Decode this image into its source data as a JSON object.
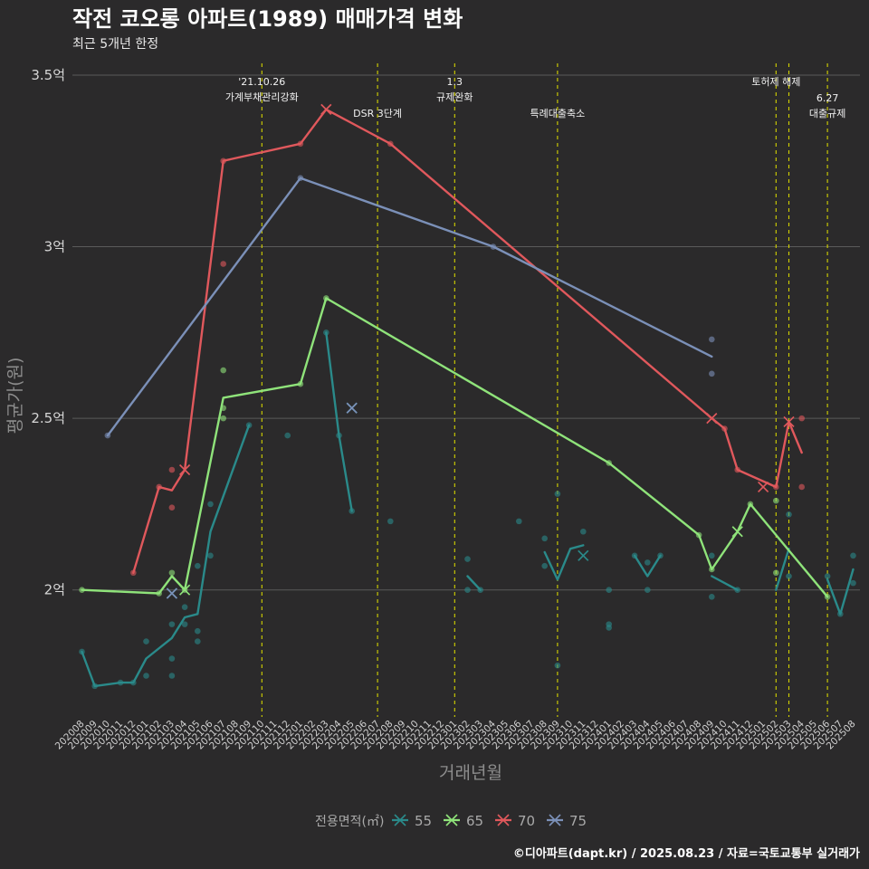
{
  "colors": {
    "background": "#2b2a2b",
    "series_55": "#2a8a8a",
    "series_65": "#8fe37a",
    "series_70": "#e0585c",
    "series_75": "#7b90b8",
    "vline": "#d4d400"
  },
  "chart_data": {
    "type": "line",
    "title": "작전 코오롱 아파트(1989) 매매가격 변화",
    "subtitle": "최근 5개년 한정",
    "xlabel": "거래년월",
    "ylabel": "평균가(원)",
    "ylim": [
      1.63,
      3.55
    ],
    "yticks": [
      {
        "value": 2.0,
        "label": "2억"
      },
      {
        "value": 2.5,
        "label": "2.5억"
      },
      {
        "value": 3.0,
        "label": "3억"
      },
      {
        "value": 3.5,
        "label": "3.5억"
      }
    ],
    "categories": [
      "202008",
      "202009",
      "202010",
      "202011",
      "202012",
      "202101",
      "202102",
      "202103",
      "202104",
      "202105",
      "202106",
      "202107",
      "202108",
      "202109",
      "202110",
      "202111",
      "202112",
      "202201",
      "202202",
      "202203",
      "202204",
      "202205",
      "202206",
      "202207",
      "202208",
      "202209",
      "202210",
      "202211",
      "202212",
      "202301",
      "202302",
      "202303",
      "202304",
      "202305",
      "202306",
      "202307",
      "202308",
      "202309",
      "202310",
      "202311",
      "202312",
      "202401",
      "202402",
      "202403",
      "202404",
      "202405",
      "202406",
      "202407",
      "202408",
      "202409",
      "202410",
      "202411",
      "202412",
      "202501",
      "202502",
      "202503",
      "202504",
      "202505",
      "202506",
      "202507",
      "202508"
    ],
    "grid": true,
    "legend": {
      "title": "전용면적(㎡)",
      "position": "bottom",
      "entries": [
        "55",
        "65",
        "70",
        "75"
      ]
    },
    "annotations": [
      {
        "x": "202110",
        "lines": [
          "'21.10.26",
          "가계부채관리강화"
        ],
        "row": 0
      },
      {
        "x": "202207",
        "lines": [
          "DSR 3단계"
        ],
        "row": 1
      },
      {
        "x": "202301",
        "lines": [
          "1.3",
          "규제완화"
        ],
        "row": 0
      },
      {
        "x": "202309",
        "lines": [
          "특례대출축소"
        ],
        "row": 1
      },
      {
        "x": "202502",
        "lines": [
          "토허제 해제"
        ],
        "row": 0
      },
      {
        "x": "202503",
        "lines": [],
        "row": 0
      },
      {
        "x": "202506",
        "lines": [
          "6.27",
          "대출규제"
        ],
        "row": 1
      }
    ],
    "series": [
      {
        "name": "55",
        "line": [
          {
            "x": "202008",
            "y": 1.82
          },
          {
            "x": "202009",
            "y": 1.72
          },
          {
            "x": "202011",
            "y": 1.73
          },
          {
            "x": "202012",
            "y": 1.73
          },
          {
            "x": "202101",
            "y": 1.8
          },
          {
            "x": "202103",
            "y": 1.86
          },
          {
            "x": "202104",
            "y": 1.92
          },
          {
            "x": "202105",
            "y": 1.93
          },
          {
            "x": "202106",
            "y": 2.17
          },
          {
            "x": "202109",
            "y": 2.48
          }
        ],
        "line2": [
          {
            "x": "202203",
            "y": 2.75
          },
          {
            "x": "202204",
            "y": 2.45
          },
          {
            "x": "202205",
            "y": 2.23
          }
        ],
        "fragments": [
          [
            {
              "x": "202302",
              "y": 2.04
            },
            {
              "x": "202303",
              "y": 2.0
            }
          ],
          [
            {
              "x": "202308",
              "y": 2.11
            },
            {
              "x": "202309",
              "y": 2.03
            },
            {
              "x": "202310",
              "y": 2.12
            },
            {
              "x": "202311",
              "y": 2.13
            }
          ],
          [
            {
              "x": "202403",
              "y": 2.1
            },
            {
              "x": "202404",
              "y": 2.04
            },
            {
              "x": "202405",
              "y": 2.1
            }
          ],
          [
            {
              "x": "202409",
              "y": 2.04
            },
            {
              "x": "202411",
              "y": 2.0
            }
          ],
          [
            {
              "x": "202502",
              "y": 2.0
            },
            {
              "x": "202503",
              "y": 2.12
            }
          ],
          [
            {
              "x": "202506",
              "y": 2.03
            },
            {
              "x": "202507",
              "y": 1.93
            },
            {
              "x": "202508",
              "y": 2.06
            }
          ]
        ],
        "points": [
          {
            "x": "202008",
            "y": 1.82
          },
          {
            "x": "202009",
            "y": 1.72
          },
          {
            "x": "202011",
            "y": 1.73
          },
          {
            "x": "202012",
            "y": 1.73
          },
          {
            "x": "202101",
            "y": 1.85
          },
          {
            "x": "202101",
            "y": 1.75
          },
          {
            "x": "202103",
            "y": 1.9
          },
          {
            "x": "202103",
            "y": 1.8
          },
          {
            "x": "202103",
            "y": 1.75
          },
          {
            "x": "202104",
            "y": 1.9
          },
          {
            "x": "202104",
            "y": 1.95
          },
          {
            "x": "202105",
            "y": 1.88
          },
          {
            "x": "202105",
            "y": 1.85
          },
          {
            "x": "202105",
            "y": 2.07
          },
          {
            "x": "202106",
            "y": 2.25
          },
          {
            "x": "202106",
            "y": 2.1
          },
          {
            "x": "202109",
            "y": 2.48
          },
          {
            "x": "202112",
            "y": 2.45
          },
          {
            "x": "202203",
            "y": 2.75
          },
          {
            "x": "202204",
            "y": 2.45
          },
          {
            "x": "202205",
            "y": 2.23
          },
          {
            "x": "202208",
            "y": 2.2
          },
          {
            "x": "202302",
            "y": 2.09
          },
          {
            "x": "202302",
            "y": 2.0
          },
          {
            "x": "202303",
            "y": 2.0
          },
          {
            "x": "202306",
            "y": 2.2
          },
          {
            "x": "202308",
            "y": 2.07
          },
          {
            "x": "202308",
            "y": 2.15
          },
          {
            "x": "202309",
            "y": 2.28
          },
          {
            "x": "202309",
            "y": 1.78
          },
          {
            "x": "202311",
            "y": 2.17
          },
          {
            "x": "202401",
            "y": 2.0
          },
          {
            "x": "202401",
            "y": 1.9
          },
          {
            "x": "202401",
            "y": 1.89
          },
          {
            "x": "202403",
            "y": 2.1
          },
          {
            "x": "202404",
            "y": 2.08
          },
          {
            "x": "202404",
            "y": 2.0
          },
          {
            "x": "202405",
            "y": 2.1
          },
          {
            "x": "202409",
            "y": 1.98
          },
          {
            "x": "202409",
            "y": 2.1
          },
          {
            "x": "202411",
            "y": 2.0
          },
          {
            "x": "202503",
            "y": 2.22
          },
          {
            "x": "202503",
            "y": 2.04
          },
          {
            "x": "202506",
            "y": 2.04
          },
          {
            "x": "202507",
            "y": 1.93
          },
          {
            "x": "202508",
            "y": 2.1
          },
          {
            "x": "202508",
            "y": 2.02
          }
        ],
        "crosses": [
          {
            "x": "202103",
            "y": 1.99
          },
          {
            "x": "202205",
            "y": 2.53
          },
          {
            "x": "202311",
            "y": 2.1
          }
        ]
      },
      {
        "name": "65",
        "line": [
          {
            "x": "202008",
            "y": 2.0
          },
          {
            "x": "202102",
            "y": 1.99
          },
          {
            "x": "202103",
            "y": 2.04
          },
          {
            "x": "202104",
            "y": 2.0
          },
          {
            "x": "202107",
            "y": 2.56
          },
          {
            "x": "202201",
            "y": 2.6
          },
          {
            "x": "202203",
            "y": 2.85
          },
          {
            "x": "202401",
            "y": 2.37
          },
          {
            "x": "202408",
            "y": 2.16
          },
          {
            "x": "202409",
            "y": 2.06
          },
          {
            "x": "202411",
            "y": 2.17
          },
          {
            "x": "202412",
            "y": 2.25
          },
          {
            "x": "202506",
            "y": 1.98
          }
        ],
        "points": [
          {
            "x": "202008",
            "y": 2.0
          },
          {
            "x": "202102",
            "y": 1.99
          },
          {
            "x": "202103",
            "y": 2.05
          },
          {
            "x": "202104",
            "y": 2.0
          },
          {
            "x": "202107",
            "y": 2.64
          },
          {
            "x": "202107",
            "y": 2.53
          },
          {
            "x": "202107",
            "y": 2.5
          },
          {
            "x": "202201",
            "y": 2.6
          },
          {
            "x": "202203",
            "y": 2.85
          },
          {
            "x": "202401",
            "y": 2.37
          },
          {
            "x": "202408",
            "y": 2.16
          },
          {
            "x": "202409",
            "y": 2.06
          },
          {
            "x": "202412",
            "y": 2.25
          },
          {
            "x": "202502",
            "y": 2.26
          },
          {
            "x": "202502",
            "y": 2.05
          },
          {
            "x": "202506",
            "y": 1.98
          }
        ],
        "crosses": [
          {
            "x": "202104",
            "y": 2.0
          },
          {
            "x": "202411",
            "y": 2.17
          }
        ]
      },
      {
        "name": "70",
        "line": [
          {
            "x": "202012",
            "y": 2.05
          },
          {
            "x": "202102",
            "y": 2.3
          },
          {
            "x": "202103",
            "y": 2.29
          },
          {
            "x": "202104",
            "y": 2.35
          },
          {
            "x": "202107",
            "y": 3.25
          },
          {
            "x": "202201",
            "y": 3.3
          },
          {
            "x": "202203",
            "y": 3.4
          },
          {
            "x": "202208",
            "y": 3.3
          },
          {
            "x": "202409",
            "y": 2.5
          },
          {
            "x": "202410",
            "y": 2.47
          },
          {
            "x": "202411",
            "y": 2.35
          },
          {
            "x": "202502",
            "y": 2.3
          },
          {
            "x": "202503",
            "y": 2.49
          },
          {
            "x": "202504",
            "y": 2.4
          }
        ],
        "points": [
          {
            "x": "202012",
            "y": 2.05
          },
          {
            "x": "202102",
            "y": 2.3
          },
          {
            "x": "202103",
            "y": 2.35
          },
          {
            "x": "202103",
            "y": 2.24
          },
          {
            "x": "202107",
            "y": 3.25
          },
          {
            "x": "202107",
            "y": 2.95
          },
          {
            "x": "202201",
            "y": 3.3
          },
          {
            "x": "202208",
            "y": 3.3
          },
          {
            "x": "202410",
            "y": 2.47
          },
          {
            "x": "202411",
            "y": 2.35
          },
          {
            "x": "202502",
            "y": 2.3
          },
          {
            "x": "202504",
            "y": 2.5
          },
          {
            "x": "202504",
            "y": 2.3
          }
        ],
        "crosses": [
          {
            "x": "202104",
            "y": 2.35
          },
          {
            "x": "202203",
            "y": 3.4
          },
          {
            "x": "202409",
            "y": 2.5
          },
          {
            "x": "202501",
            "y": 2.3
          },
          {
            "x": "202503",
            "y": 2.49
          }
        ]
      },
      {
        "name": "75",
        "line": [
          {
            "x": "202010",
            "y": 2.45
          },
          {
            "x": "202201",
            "y": 3.2
          },
          {
            "x": "202304",
            "y": 3.0
          },
          {
            "x": "202409",
            "y": 2.68
          }
        ],
        "points": [
          {
            "x": "202010",
            "y": 2.45
          },
          {
            "x": "202201",
            "y": 3.2
          },
          {
            "x": "202304",
            "y": 3.0
          },
          {
            "x": "202409",
            "y": 2.73
          },
          {
            "x": "202409",
            "y": 2.63
          }
        ],
        "crosses": [
          {
            "x": "202103",
            "y": 1.99
          },
          {
            "x": "202205",
            "y": 2.53
          }
        ]
      }
    ]
  },
  "caption": "©디아파트(dapt.kr) / 2025.08.23 / 자료=국토교통부 실거래가"
}
